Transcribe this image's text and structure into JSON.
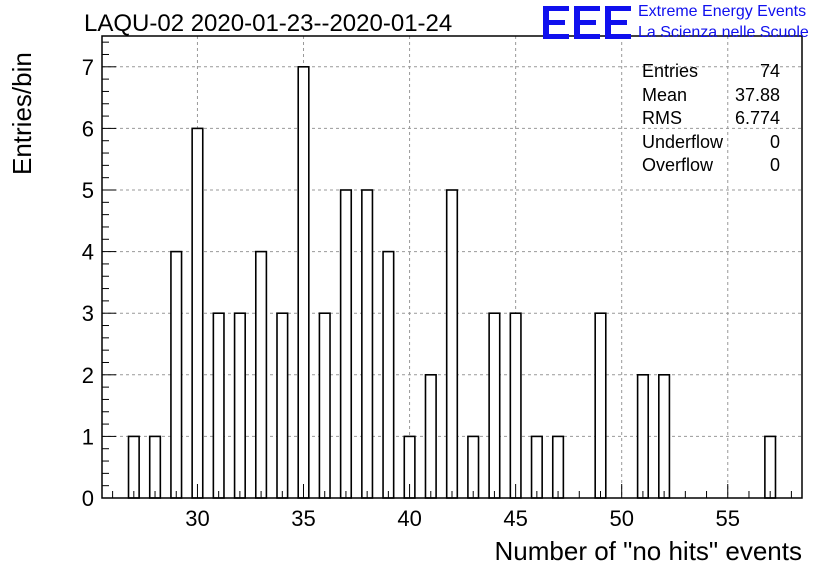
{
  "title": "LAQU-02 2020-01-23--2020-01-24",
  "logo": {
    "text": "EEE",
    "line1": "Extreme Energy Events",
    "line2": "La Scienza nelle Scuole",
    "color": "#1010ee"
  },
  "stats": [
    {
      "label": "Entries",
      "value": "74"
    },
    {
      "label": "Mean",
      "value": "37.88"
    },
    {
      "label": "RMS",
      "value": "6.774"
    },
    {
      "label": "Underflow",
      "value": "0"
    },
    {
      "label": "Overflow",
      "value": "0"
    }
  ],
  "chart_data": {
    "type": "bar",
    "xlabel": "Number of \"no hits\" events",
    "ylabel": "Entries/bin",
    "xlim": [
      25.5,
      58.5
    ],
    "ylim": [
      0,
      7.5
    ],
    "xticks": [
      30,
      35,
      40,
      45,
      50,
      55
    ],
    "yticks": [
      0,
      1,
      2,
      3,
      4,
      5,
      6,
      7
    ],
    "grid": true,
    "bar_width": 0.5,
    "x": [
      27,
      28,
      29,
      30,
      31,
      32,
      33,
      34,
      35,
      36,
      37,
      38,
      39,
      40,
      41,
      42,
      43,
      44,
      45,
      46,
      47,
      49,
      51,
      52,
      57
    ],
    "values": [
      1,
      1,
      4,
      6,
      3,
      3,
      4,
      3,
      7,
      3,
      5,
      5,
      4,
      1,
      2,
      5,
      1,
      3,
      3,
      1,
      1,
      3,
      2,
      2,
      1
    ]
  }
}
